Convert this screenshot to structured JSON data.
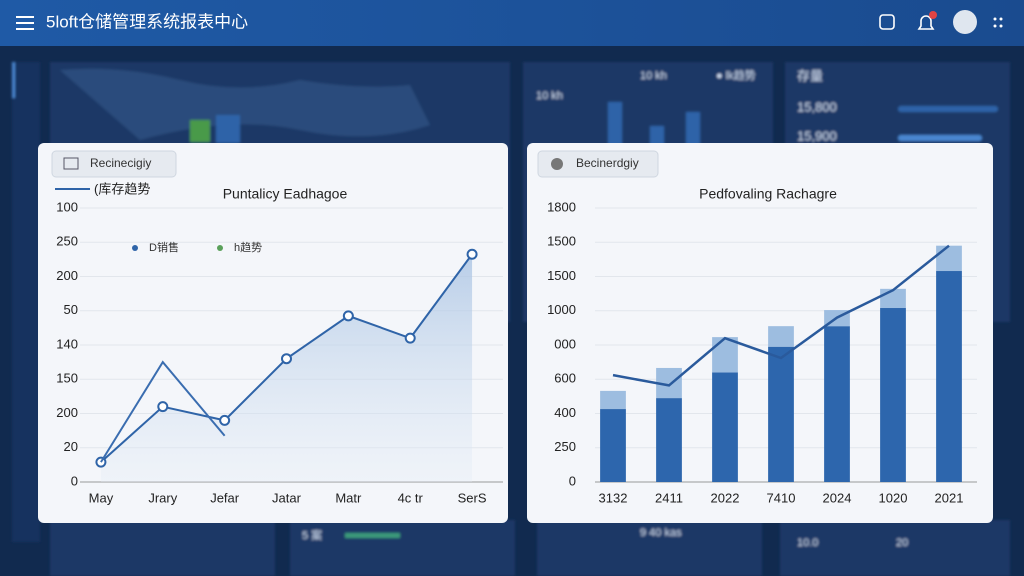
{
  "header": {
    "title": "5loft仓储管理系统报表中心"
  },
  "background": {
    "texts": [
      "10 kh",
      "● lk趋势",
      "15,800",
      "15,900",
      "存量",
      "10 kh",
      "5 案",
      "9 40 kas",
      "10.0",
      "20"
    ]
  },
  "chart_data": [
    {
      "type": "line",
      "tab": "Recinecigiy",
      "title": "Puntalicy Eadhagoe",
      "legend_items": [
        {
          "label": "D销售",
          "color": "#2f64a8"
        },
        {
          "label": "h趋势",
          "color": "#5aa05a"
        }
      ],
      "categories": [
        "May",
        "Jrary",
        "Jefar",
        "Jatar",
        "Matr",
        "4c tr",
        "SerS"
      ],
      "series": [
        {
          "name": "(库存趋势",
          "color": "#2f64a8",
          "values": [
            0.58,
            2.2,
            1.8,
            3.6,
            4.85,
            4.2,
            6.65
          ]
        },
        {
          "color": "#3a6db0",
          "values": [
            0.58,
            3.5,
            1.35,
            null,
            null,
            null,
            null
          ]
        }
      ],
      "ylim": [
        0,
        8
      ],
      "yticks": [
        0,
        1,
        2,
        3,
        4,
        5,
        6,
        7,
        8
      ],
      "ytick_labels": [
        "0",
        "20",
        "200",
        "150",
        "140",
        "50",
        "200",
        "250",
        "100"
      ],
      "grid": true
    },
    {
      "type": "bar",
      "tab": "Becinerdgiy",
      "title": "Pedfovaling Rachagre",
      "categories": [
        "3132",
        "2411",
        "2022",
        "7410",
        "2024",
        "1020",
        "2021"
      ],
      "series": [
        {
          "color": "#2d66ad",
          "values": [
            2.13,
            2.45,
            3.2,
            3.95,
            4.55,
            5.08,
            6.16
          ]
        },
        {
          "color": "#9dbde0",
          "values": [
            0.53,
            0.88,
            1.03,
            0.6,
            0.47,
            0.56,
            0.74
          ]
        }
      ],
      "line": {
        "color": "#2a5a9c",
        "values": [
          3.12,
          2.82,
          4.2,
          3.62,
          4.8,
          5.6,
          6.9
        ]
      },
      "ylim": [
        0,
        8
      ],
      "yticks": [
        0,
        1,
        2,
        3,
        4,
        5,
        6,
        7,
        8
      ],
      "ytick_labels": [
        "0",
        "250",
        "400",
        "600",
        "000",
        "1000",
        "1500",
        "1500",
        "1800"
      ],
      "grid": true
    }
  ]
}
